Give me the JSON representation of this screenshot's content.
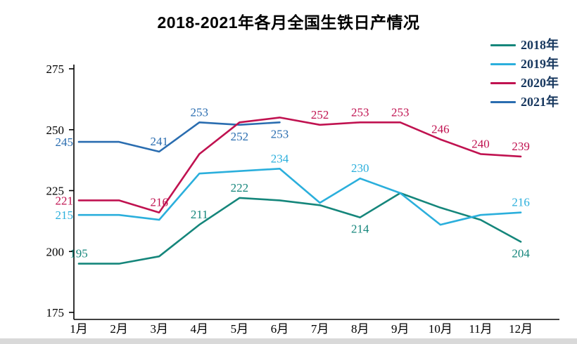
{
  "chart_data": {
    "type": "line",
    "title": "2018-2021年各月全国生铁日产情况",
    "categories": [
      "1月",
      "2月",
      "3月",
      "4月",
      "5月",
      "6月",
      "7月",
      "8月",
      "9月",
      "10月",
      "11月",
      "12月"
    ],
    "xlabel": "",
    "ylabel": "",
    "ylim": [
      175,
      275
    ],
    "yticks": [
      175,
      200,
      225,
      250,
      275
    ],
    "grid": false,
    "legend_position": "top-right",
    "axis_color": "#000000",
    "legend_text_color": "#17375e",
    "series": [
      {
        "name": "2018年",
        "color": "#15867b",
        "values": [
          195,
          195,
          198,
          211,
          222,
          221,
          219,
          214,
          224,
          218,
          213,
          204
        ],
        "point_labels": [
          {
            "month": 0,
            "position": "above"
          },
          {
            "month": 3,
            "position": "above"
          },
          {
            "month": 4,
            "position": "above"
          },
          {
            "month": 7,
            "position": "below"
          },
          {
            "month": 11,
            "position": "below"
          }
        ]
      },
      {
        "name": "2019年",
        "color": "#2bafdc",
        "values": [
          215,
          215,
          213,
          232,
          233,
          234,
          220,
          230,
          224,
          211,
          215,
          216
        ],
        "point_labels": [
          {
            "month": 0,
            "position": "left"
          },
          {
            "month": 5,
            "position": "above"
          },
          {
            "month": 7,
            "position": "above"
          },
          {
            "month": 11,
            "position": "above"
          }
        ]
      },
      {
        "name": "2020年",
        "color": "#c01250",
        "values": [
          221,
          221,
          216,
          240,
          253,
          255,
          252,
          253,
          253,
          246,
          240,
          239
        ],
        "point_labels": [
          {
            "month": 0,
            "position": "left"
          },
          {
            "month": 2,
            "position": "above"
          },
          {
            "month": 6,
            "position": "above"
          },
          {
            "month": 7,
            "position": "above"
          },
          {
            "month": 8,
            "position": "above"
          },
          {
            "month": 9,
            "position": "above"
          },
          {
            "month": 10,
            "position": "above"
          },
          {
            "month": 11,
            "position": "above"
          }
        ]
      },
      {
        "name": "2021年",
        "color": "#2a6db0",
        "values": [
          245,
          245,
          241,
          253,
          252,
          253,
          null,
          null,
          null,
          null,
          null,
          null
        ],
        "point_labels": [
          {
            "month": 0,
            "position": "left"
          },
          {
            "month": 2,
            "position": "above"
          },
          {
            "month": 3,
            "position": "above"
          },
          {
            "month": 4,
            "position": "below"
          },
          {
            "month": 5,
            "position": "below"
          }
        ]
      }
    ]
  },
  "footer": {
    "strip_color": "#d9d9d9"
  }
}
